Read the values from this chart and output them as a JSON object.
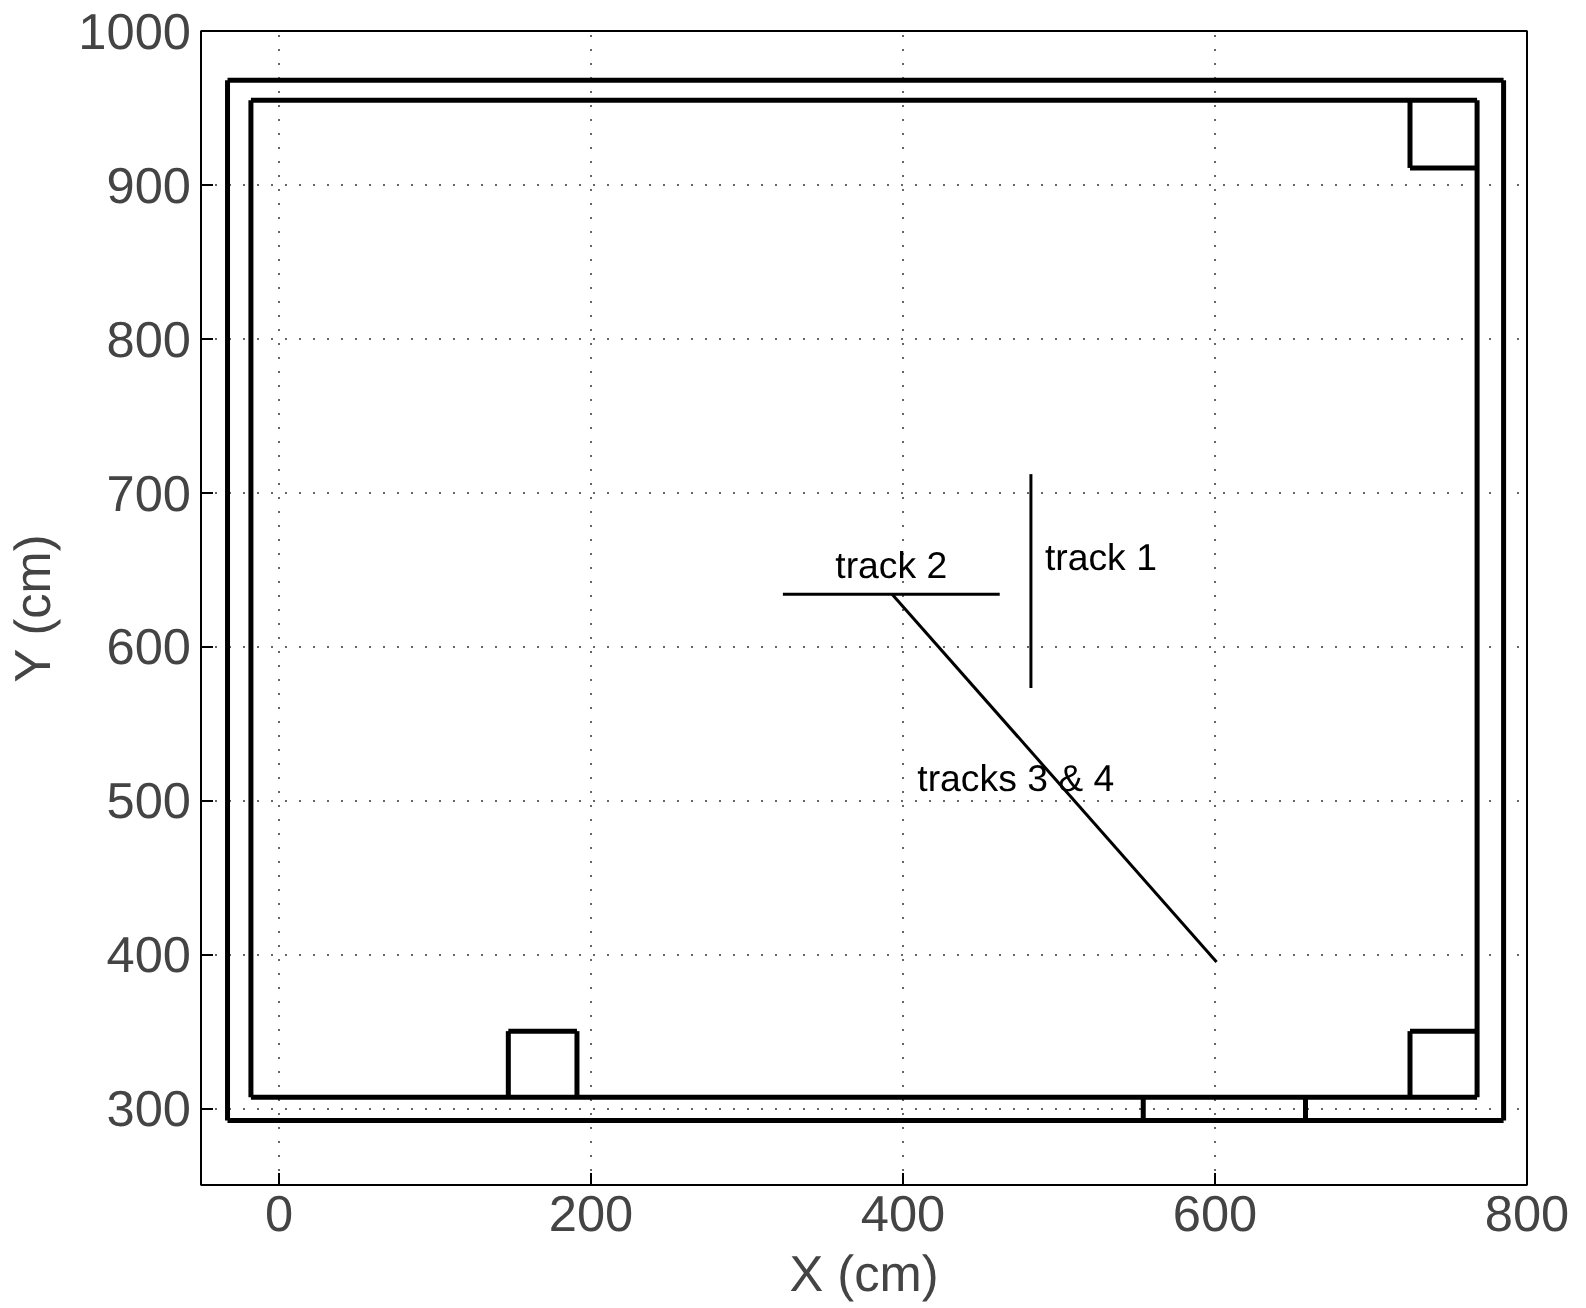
{
  "chart_data": {
    "type": "line",
    "xlabel": "X (cm)",
    "ylabel": "Y (cm)",
    "xlim": [
      -50,
      800
    ],
    "ylim": [
      250,
      1000
    ],
    "xticks": [
      0,
      200,
      400,
      600,
      800
    ],
    "yticks": [
      300,
      400,
      500,
      600,
      700,
      800,
      900,
      1000
    ],
    "grid": true,
    "legend": false,
    "marker": "none",
    "line_style": "solid",
    "series": [
      {
        "color": "#000000",
        "x": [
          -33,
          785
        ],
        "values": [
          292,
          292
        ]
      },
      {
        "color": "#000000",
        "x": [
          785,
          785
        ],
        "values": [
          292,
          968
        ]
      },
      {
        "color": "#000000",
        "x": [
          -33,
          785
        ],
        "values": [
          968,
          968
        ]
      },
      {
        "color": "#000000",
        "x": [
          -33,
          -33
        ],
        "values": [
          292,
          968
        ]
      },
      {
        "color": "#000000",
        "x": [
          -18,
          768
        ],
        "values": [
          307,
          307
        ]
      },
      {
        "color": "#000000",
        "x": [
          768,
          768
        ],
        "values": [
          307,
          955
        ]
      },
      {
        "color": "#000000",
        "x": [
          -18,
          768
        ],
        "values": [
          955,
          955
        ]
      },
      {
        "color": "#000000",
        "x": [
          -18,
          -18
        ],
        "values": [
          307,
          955
        ]
      },
      {
        "color": "#000000",
        "x": [
          554,
          554
        ],
        "values": [
          292,
          307
        ]
      },
      {
        "color": "#000000",
        "x": [
          658,
          658
        ],
        "values": [
          292,
          307
        ]
      },
      {
        "color": "#000000",
        "x": [
          147,
          147
        ],
        "values": [
          307,
          350
        ]
      },
      {
        "color": "#000000",
        "x": [
          147,
          191
        ],
        "values": [
          350,
          350
        ]
      },
      {
        "color": "#000000",
        "x": [
          191,
          191
        ],
        "values": [
          307,
          350
        ]
      },
      {
        "color": "#000000",
        "x": [
          725,
          725
        ],
        "values": [
          307,
          350
        ]
      },
      {
        "color": "#000000",
        "x": [
          725,
          768
        ],
        "values": [
          350,
          350
        ]
      },
      {
        "color": "#000000",
        "x": [
          725,
          768
        ],
        "values": [
          911,
          911
        ]
      },
      {
        "color": "#000000",
        "x": [
          725,
          725
        ],
        "values": [
          911,
          955
        ]
      },
      {
        "name": "track 1",
        "color": "#000000",
        "x": [
          482,
          482
        ],
        "values": [
          712,
          573
        ]
      },
      {
        "name": "track 2",
        "color": "#000000",
        "x": [
          323,
          462
        ],
        "values": [
          634,
          634
        ]
      },
      {
        "name": "tracks 3 & 4",
        "color": "#000000",
        "x": [
          393,
          601
        ],
        "values": [
          634,
          395
        ]
      }
    ]
  }
}
